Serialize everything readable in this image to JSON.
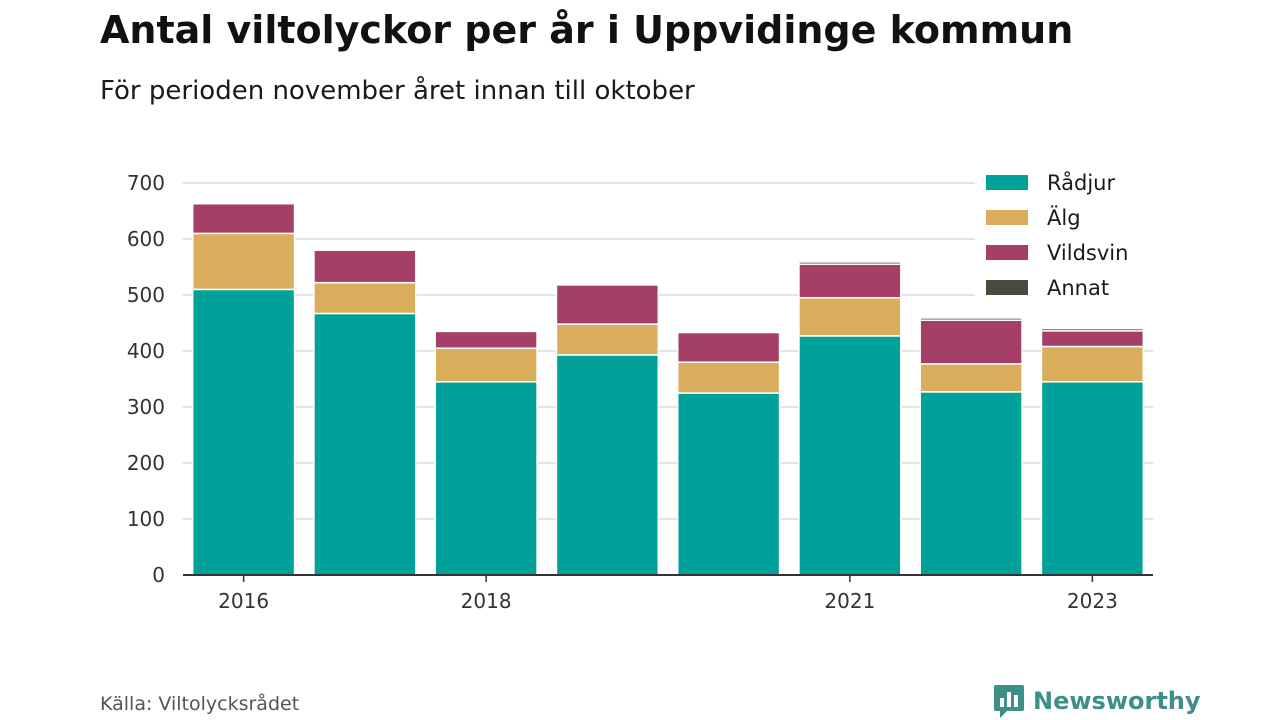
{
  "header": {
    "title": "Antal viltolyckor per år i Uppvidinge kommun",
    "subtitle": "För perioden november året innan till oktober"
  },
  "footer": {
    "source": "Källa: Viltolycksrådet",
    "brand": "Newsworthy"
  },
  "chart_data": {
    "type": "bar",
    "stacked": true,
    "categories": [
      "2016",
      "2017",
      "2018",
      "2019",
      "2020",
      "2021",
      "2022",
      "2023"
    ],
    "x_tick_labels": [
      "2016",
      "",
      "2018",
      "",
      "",
      "2021",
      "",
      "2023"
    ],
    "series": [
      {
        "name": "Rådjur",
        "color": "#00a19a",
        "values": [
          510,
          467,
          345,
          393,
          325,
          427,
          327,
          345
        ]
      },
      {
        "name": "Älg",
        "color": "#d9ad5b",
        "values": [
          100,
          55,
          60,
          55,
          55,
          68,
          50,
          63
        ]
      },
      {
        "name": "Vildsvin",
        "color": "#a63f67",
        "values": [
          53,
          58,
          30,
          70,
          53,
          60,
          78,
          28
        ]
      },
      {
        "name": "Annat",
        "color": "#4a4b3c",
        "values": [
          0,
          0,
          0,
          0,
          0,
          4,
          4,
          4
        ]
      }
    ],
    "ylim": [
      0,
      700
    ],
    "yticks": [
      0,
      100,
      200,
      300,
      400,
      500,
      600,
      700
    ],
    "grid": true,
    "legend_position": "top-right"
  }
}
